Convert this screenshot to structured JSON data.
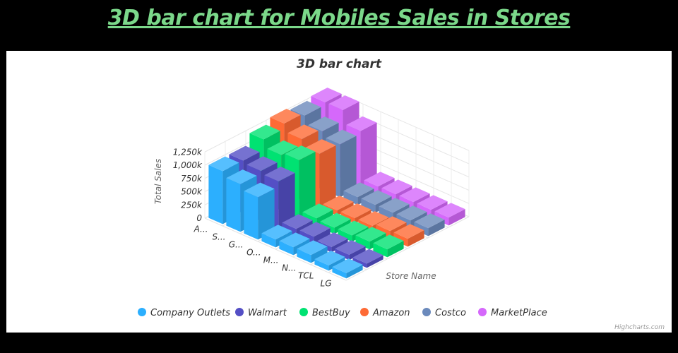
{
  "page": {
    "title": "3D bar chart for Mobiles Sales in Stores"
  },
  "chart_data": {
    "type": "bar",
    "title": "3D bar chart",
    "ylabel": "Total Sales",
    "zlabel": "Store Name",
    "categories": [
      "A...",
      "S...",
      "G...",
      "O...",
      "M...",
      "N...",
      "TCL",
      "LG"
    ],
    "yticks": [
      "0",
      "250k",
      "500k",
      "750k",
      "1,000k",
      "1,250k"
    ],
    "ylim": [
      0,
      1250000
    ],
    "grid": true,
    "legend_position": "bottom",
    "series": [
      {
        "name": "Company Outlets",
        "color": "#2caffe",
        "values": [
          1000000,
          900000,
          800000,
          150000,
          150000,
          150000,
          100000,
          100000
        ]
      },
      {
        "name": "Walmart",
        "color": "#544fc5",
        "values": [
          1000000,
          950000,
          900000,
          150000,
          150000,
          100000,
          100000,
          80000
        ]
      },
      {
        "name": "BestBuy",
        "color": "#00e272",
        "values": [
          1200000,
          1050000,
          1100000,
          150000,
          120000,
          120000,
          150000,
          150000
        ]
      },
      {
        "name": "Amazon",
        "color": "#fe6a35",
        "values": [
          1300000,
          1150000,
          1020000,
          100000,
          100000,
          100000,
          150000,
          150000
        ]
      },
      {
        "name": "Costco",
        "color": "#6b8abc",
        "values": [
          1250000,
          1100000,
          1000000,
          150000,
          150000,
          150000,
          150000,
          150000
        ]
      },
      {
        "name": "MarketPlace",
        "color": "#d568fb",
        "values": [
          1300000,
          1300000,
          1050000,
          150000,
          150000,
          150000,
          150000,
          150000
        ]
      }
    ],
    "credits": "Highcharts.com"
  }
}
